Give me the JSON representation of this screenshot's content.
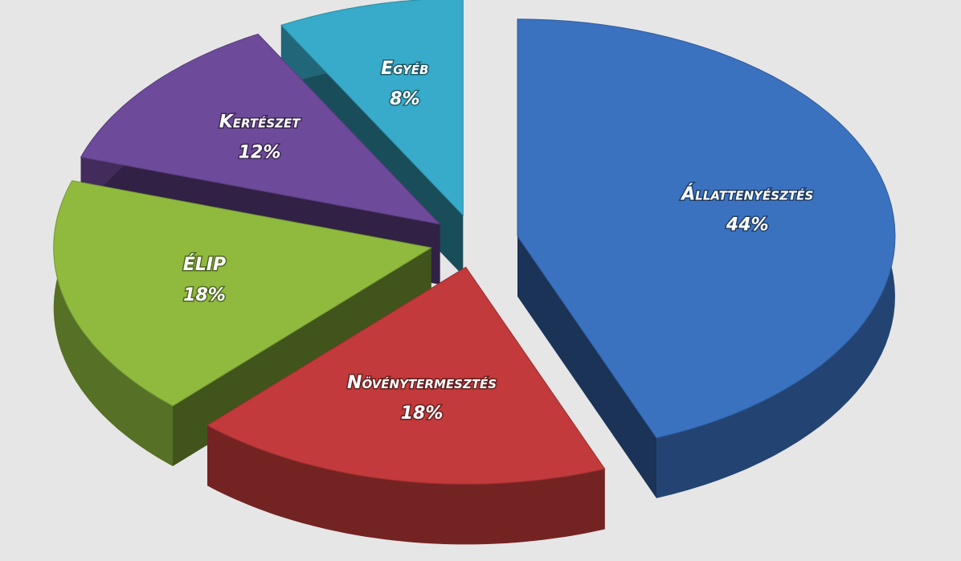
{
  "chart_data": {
    "type": "pie",
    "categories": [
      "Állattenyésztés",
      "Növénytermesztés",
      "ÉLIP",
      "Kertészet",
      "Egyéb"
    ],
    "values": [
      44,
      18,
      18,
      12,
      8
    ],
    "value_labels": [
      "44%",
      "18%",
      "18%",
      "12%",
      "8%"
    ],
    "colors": [
      "#3a72c0",
      "#c23a3b",
      "#8fba3e",
      "#6d4a9a",
      "#37abc9"
    ]
  }
}
